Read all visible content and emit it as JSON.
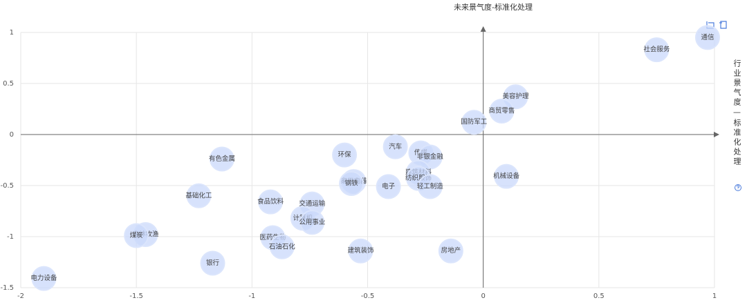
{
  "chart_data": {
    "type": "scatter",
    "title": "未来景气度-标准化处理",
    "y_label": "行业景气度—标准化处理",
    "color": "#c9d8fb",
    "grid": true,
    "xlim": [
      -2,
      1
    ],
    "xticks": [
      -2,
      -1.5,
      -1,
      -0.5,
      0,
      0.5,
      1
    ],
    "ylim": [
      -1.5,
      1
    ],
    "yticks": [
      -1.5,
      -1,
      -0.5,
      0,
      0.5,
      1
    ],
    "labels": [
      "通信",
      "社会服务",
      "美容护理",
      "商贸零售",
      "国防军工",
      "机械设备",
      "汽车",
      "传媒",
      "非银金融",
      "建筑材料",
      "纺织服饰",
      "轻工制造",
      "电子",
      "环保",
      "家用电器",
      "钢铁",
      "有色金属",
      "基础化工",
      "食品饮料",
      "交通运输",
      "计算机",
      "公用事业",
      "医药生物",
      "石油石化",
      "建筑装饰",
      "房地产",
      "农林牧渔",
      "煤炭",
      "银行",
      "电力设备"
    ],
    "x": [
      0.97,
      0.75,
      0.14,
      0.08,
      -0.04,
      0.1,
      -0.38,
      -0.27,
      -0.23,
      -0.28,
      -0.28,
      -0.23,
      -0.41,
      -0.6,
      -0.56,
      -0.57,
      -1.13,
      -1.23,
      -0.92,
      -0.74,
      -0.78,
      -0.74,
      -0.91,
      -0.87,
      -0.53,
      -0.14,
      -1.46,
      -1.5,
      -1.17,
      -1.9
    ],
    "y": [
      0.95,
      0.83,
      0.37,
      0.23,
      0.12,
      -0.41,
      -0.12,
      -0.18,
      -0.22,
      -0.37,
      -0.43,
      -0.51,
      -0.51,
      -0.2,
      -0.46,
      -0.48,
      -0.24,
      -0.6,
      -0.66,
      -0.68,
      -0.82,
      -0.86,
      -1.01,
      -1.1,
      -1.14,
      -1.14,
      -0.98,
      -0.99,
      -1.26,
      -1.41
    ]
  }
}
